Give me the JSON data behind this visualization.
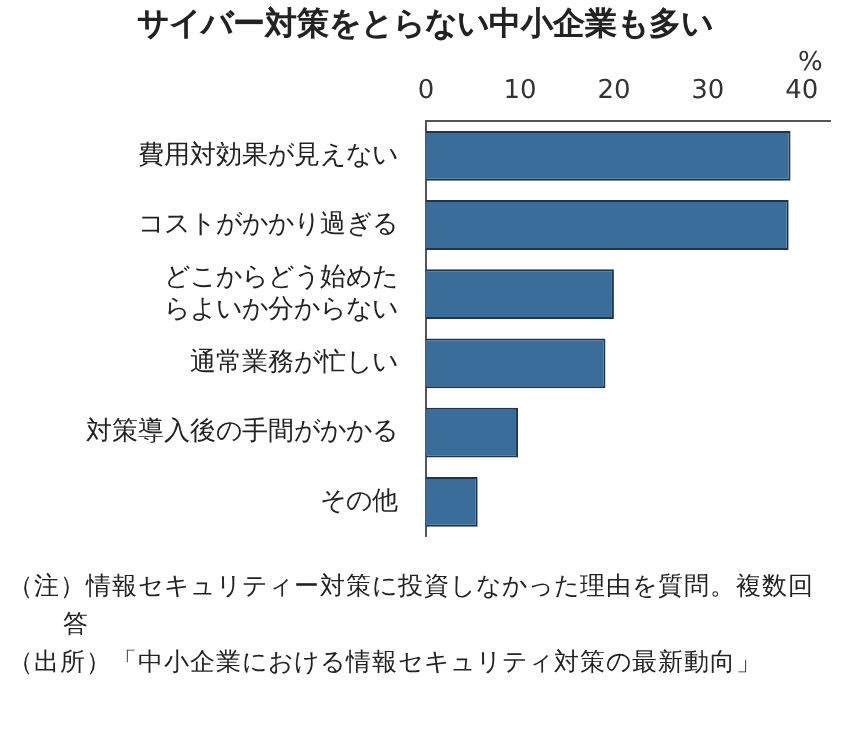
{
  "chart_data": {
    "type": "bar",
    "orientation": "horizontal",
    "title": "サイバー対策をとらない中小企業も多い",
    "xlabel": "%",
    "categories": [
      "費用対効果が見えない",
      "コストがかかり過ぎる",
      "どこからどう始めたらよいか分からない",
      "通常業務が忙しい",
      "対策導入後の手間がかかる",
      "その他"
    ],
    "values": [
      38.8,
      38.6,
      20.0,
      19.1,
      9.8,
      5.5
    ],
    "color": "#3a6d9a",
    "xlim": [
      0,
      43
    ],
    "xticks": [
      0,
      10,
      20,
      30,
      40
    ],
    "grid": false,
    "legend": false,
    "annotations": [
      "（注）情報セキュリティー対策に投資しなかった理由を質問。複数回答",
      "（出所）「中小企業における情報セキュリティ対策の最新動向」"
    ]
  }
}
